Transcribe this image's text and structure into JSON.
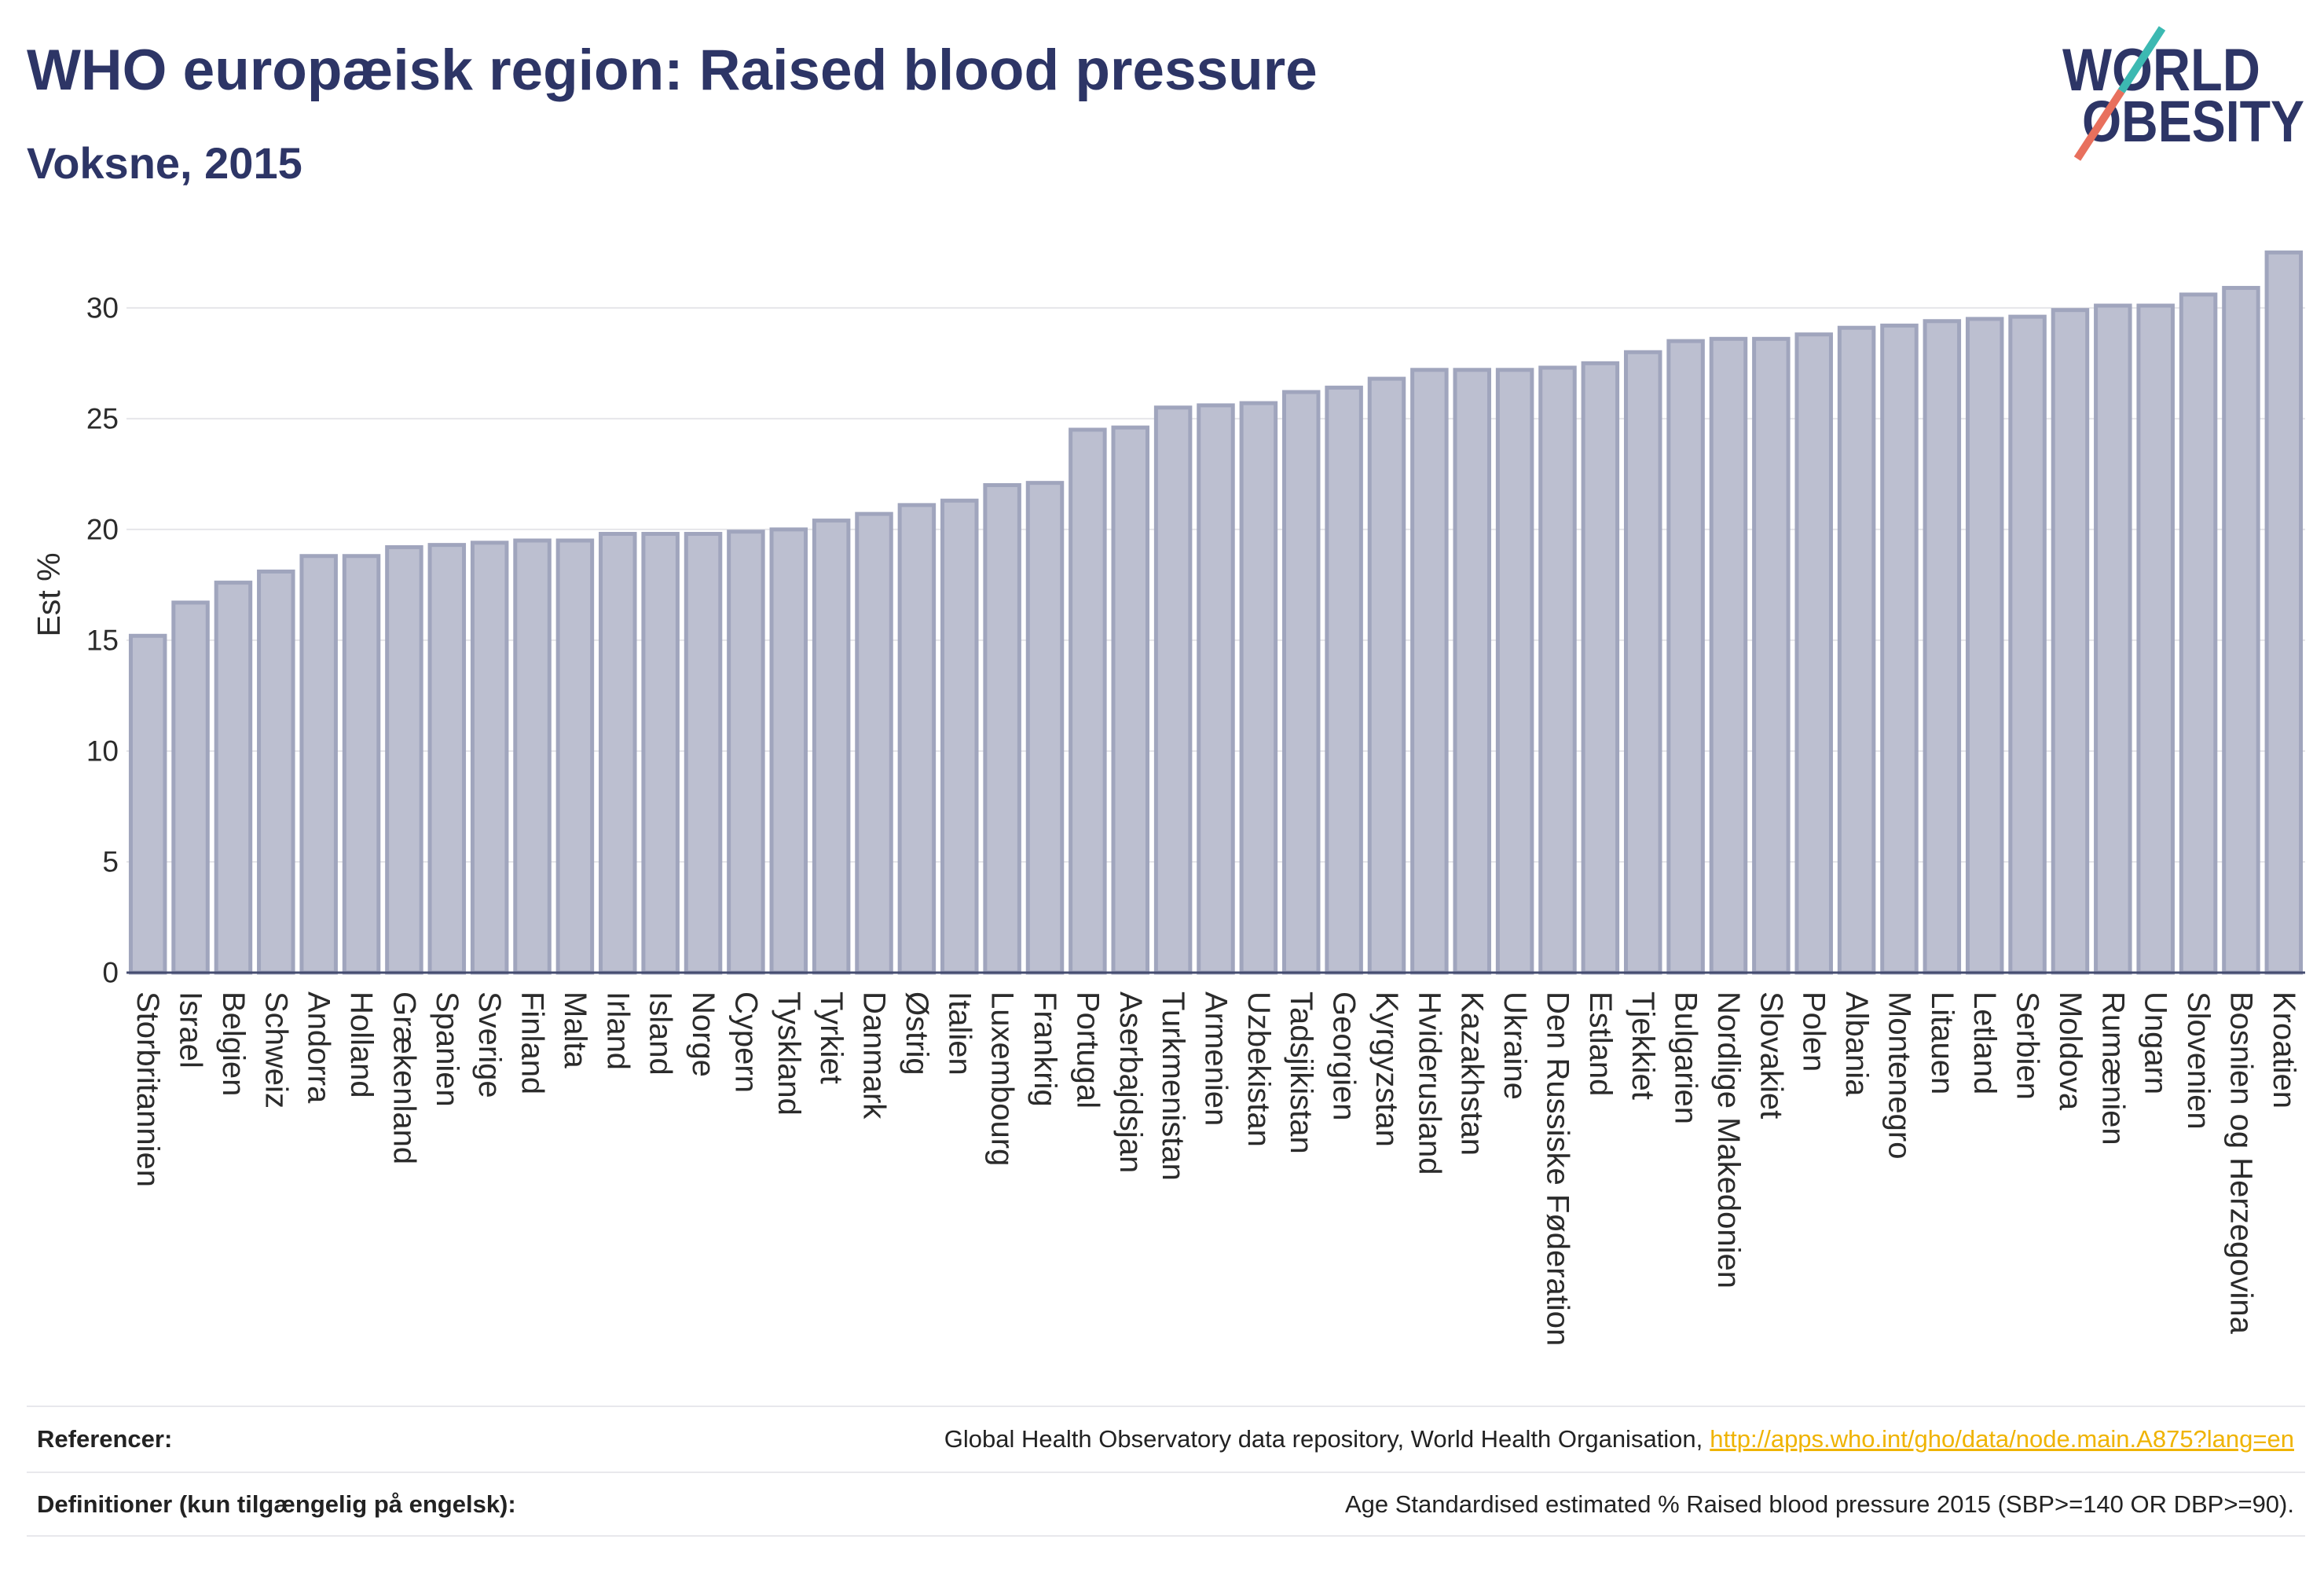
{
  "chart_data": {
    "type": "bar",
    "title": "WHO europæisk region: Raised blood pressure",
    "subtitle": "Voksne, 2015",
    "xlabel": "",
    "ylabel": "Est %",
    "ylim": [
      0,
      34
    ],
    "yticks": [
      0,
      5,
      10,
      15,
      20,
      25,
      30
    ],
    "grid": true,
    "categories": [
      "Storbritannien",
      "Israel",
      "Belgien",
      "Schweiz",
      "Andorra",
      "Holland",
      "Grækenland",
      "Spanien",
      "Sverige",
      "Finland",
      "Malta",
      "Irland",
      "Island",
      "Norge",
      "Cypern",
      "Tyskland",
      "Tyrkiet",
      "Danmark",
      "Østrig",
      "Italien",
      "Luxembourg",
      "Frankrig",
      "Portugal",
      "Aserbajdsjan",
      "Turkmenistan",
      "Armenien",
      "Uzbekistan",
      "Tadsjikistan",
      "Georgien",
      "Kyrgyzstan",
      "Hviderusland",
      "Kazakhstan",
      "Ukraine",
      "Den Russiske Føderation",
      "Estland",
      "Tjekkiet",
      "Bulgarien",
      "Nordlige Makedonien",
      "Slovakiet",
      "Polen",
      "Albania",
      "Montenegro",
      "Litauen",
      "Letland",
      "Serbien",
      "Moldova",
      "Rumænien",
      "Ungarn",
      "Slovenien",
      "Bosnien og Herzegovina",
      "Kroatien"
    ],
    "values": [
      15.2,
      16.7,
      17.6,
      18.1,
      18.8,
      18.8,
      19.2,
      19.3,
      19.4,
      19.5,
      19.5,
      19.8,
      19.8,
      19.8,
      19.9,
      20.0,
      20.4,
      20.7,
      21.1,
      21.3,
      22.0,
      22.1,
      24.5,
      24.6,
      25.5,
      25.6,
      25.7,
      26.2,
      26.4,
      26.8,
      27.2,
      27.2,
      27.2,
      27.3,
      27.5,
      28.0,
      28.5,
      28.6,
      28.6,
      28.8,
      29.1,
      29.2,
      29.4,
      29.5,
      29.6,
      29.9,
      30.1,
      30.1,
      30.6,
      30.9,
      32.5
    ],
    "colors": {
      "bar_fill": "#bcbfd0",
      "bar_border": "#a0a5bd",
      "gridline": "#e6e6ea",
      "axis": "#454c70"
    }
  },
  "logo": {
    "line1": "WORLD",
    "line2": "OBESITY",
    "text_color": "#2d3566",
    "slash_top_color": "#3cb9b2",
    "slash_bottom_color": "#e8705d"
  },
  "footer": {
    "references": {
      "label": "Referencer:",
      "text": "Global Health Observatory data repository, World Health Organisation,",
      "link": "http://apps.who.int/gho/data/node.main.A875?lang=en"
    },
    "definitions": {
      "label": "Definitioner (kun tilgængelig på engelsk):",
      "text": "Age Standardised estimated % Raised blood pressure 2015 (SBP>=140 OR DBP>=90)."
    }
  },
  "theme": {
    "title_color": "#2d3566",
    "link_color": "#efb300"
  }
}
